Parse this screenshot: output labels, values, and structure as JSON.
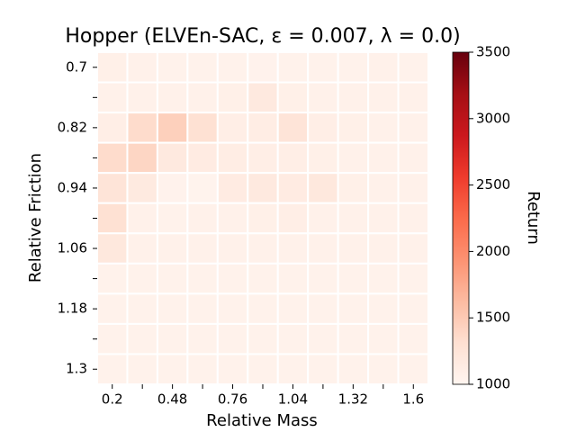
{
  "chart_data": {
    "type": "heatmap",
    "title": "Hopper (ELVEn-SAC, ε = 0.007, λ = 0.0)",
    "x_label": "Relative Mass",
    "y_label": "Relative Friction",
    "colorbar_label": "Return",
    "x_categories": [
      "0.2",
      null,
      "0.48",
      null,
      "0.76",
      null,
      "1.04",
      null,
      "1.32",
      null,
      "1.6"
    ],
    "y_categories": [
      "0.7",
      null,
      "0.82",
      null,
      "0.94",
      null,
      "1.06",
      null,
      "1.18",
      null,
      "1.3"
    ],
    "values": [
      [
        1080,
        1060,
        1050,
        1050,
        1050,
        1040,
        1050,
        1050,
        1050,
        1060,
        1050
      ],
      [
        1060,
        1060,
        1060,
        1060,
        1080,
        1180,
        1080,
        1060,
        1060,
        1060,
        1060
      ],
      [
        1100,
        1350,
        1450,
        1300,
        1100,
        1120,
        1250,
        1100,
        1080,
        1060,
        1060
      ],
      [
        1350,
        1400,
        1180,
        1150,
        1120,
        1100,
        1100,
        1080,
        1060,
        1060,
        1060
      ],
      [
        1250,
        1170,
        1040,
        1030,
        1150,
        1180,
        1150,
        1200,
        1080,
        1060,
        1060
      ],
      [
        1300,
        1060,
        1050,
        1060,
        1060,
        1080,
        1100,
        1060,
        1060,
        1060,
        1060
      ],
      [
        1200,
        1060,
        1060,
        1060,
        1060,
        1060,
        1060,
        1060,
        1060,
        1060,
        1060
      ],
      [
        1050,
        1050,
        1050,
        1050,
        1050,
        1050,
        1050,
        1050,
        1050,
        1050,
        1050
      ],
      [
        1050,
        1050,
        1050,
        1050,
        1050,
        1050,
        1050,
        1050,
        1050,
        1050,
        1050
      ],
      [
        1050,
        1050,
        1050,
        1050,
        1050,
        1050,
        1050,
        1050,
        1050,
        1050,
        1050
      ],
      [
        1050,
        1050,
        1050,
        1050,
        1050,
        1050,
        1050,
        1050,
        1050,
        1050,
        1050
      ]
    ],
    "colormap": "Reds",
    "clim": [
      1000,
      3500
    ],
    "cticks": [
      1000,
      1500,
      2000,
      2500,
      3000,
      3500
    ]
  }
}
